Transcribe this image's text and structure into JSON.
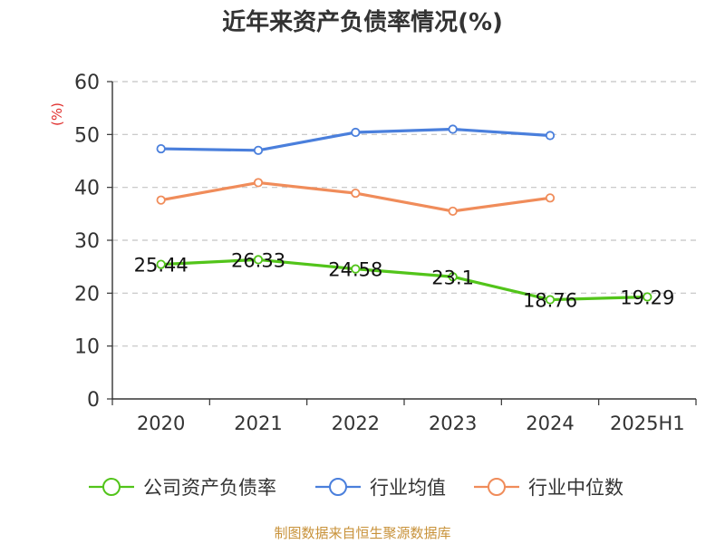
{
  "chart_data": {
    "type": "line",
    "title": "近年来资产负债率情况(%)",
    "ylabel": "(%)",
    "xlabel": "",
    "categories": [
      "2020",
      "2021",
      "2022",
      "2023",
      "2024",
      "2025H1"
    ],
    "ylim": [
      0,
      60
    ],
    "yticks": [
      0,
      10,
      20,
      30,
      40,
      50,
      60
    ],
    "grid": true,
    "legend_position": "bottom",
    "series": [
      {
        "name": "公司资产负债率",
        "color": "#52c41a",
        "values": [
          25.44,
          26.33,
          24.58,
          23.1,
          18.76,
          19.29
        ],
        "labels": [
          "25.44",
          "26.33",
          "24.58",
          "23.1",
          "18.76",
          "19.29"
        ]
      },
      {
        "name": "行业均值",
        "color": "#4a7fdc",
        "values": [
          47.3,
          47.0,
          50.4,
          51.0,
          49.8,
          null
        ]
      },
      {
        "name": "行业中位数",
        "color": "#f08c5a",
        "values": [
          37.6,
          40.9,
          38.9,
          35.5,
          38.0,
          null
        ]
      }
    ]
  },
  "source": "制图数据来自恒生聚源数据库"
}
